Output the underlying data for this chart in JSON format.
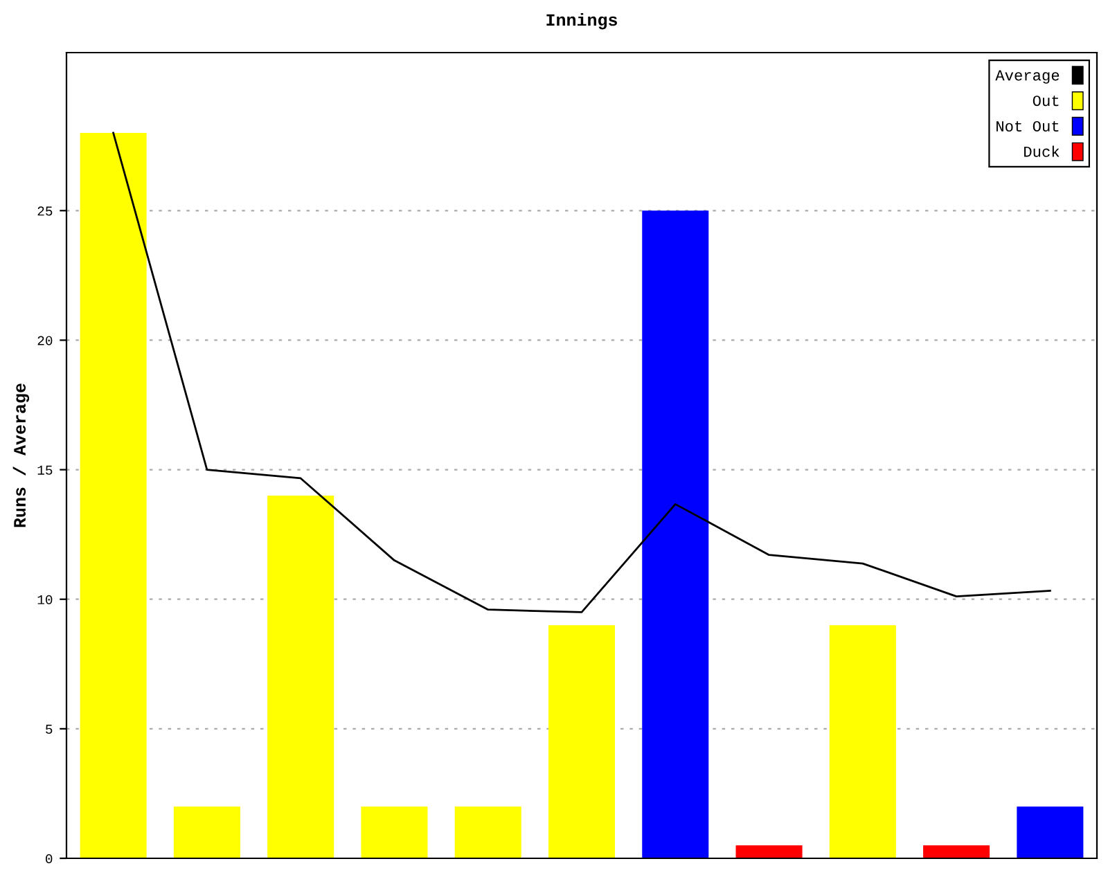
{
  "chart_data": {
    "type": "bar",
    "title": "Innings",
    "ylabel": "Runs / Average",
    "categories": [
      null,
      null,
      null,
      null,
      null,
      null,
      null,
      null,
      null,
      null,
      null
    ],
    "series": [
      {
        "name": "Average",
        "type": "line",
        "color": "#000000",
        "values": [
          28,
          15,
          14.67,
          11.5,
          9.6,
          9.5,
          13.67,
          11.71,
          11.38,
          10.11,
          10.33
        ]
      },
      {
        "name": "Out",
        "color": "#ffff00",
        "values": [
          28,
          2,
          14,
          2,
          2,
          9,
          null,
          null,
          9,
          null,
          null
        ]
      },
      {
        "name": "Not Out",
        "color": "#0000ff",
        "values": [
          null,
          null,
          null,
          null,
          null,
          null,
          25,
          null,
          null,
          null,
          2
        ]
      },
      {
        "name": "Duck",
        "color": "#ff0000",
        "values": [
          null,
          null,
          null,
          null,
          null,
          null,
          null,
          0.5,
          null,
          0.5,
          null
        ]
      }
    ],
    "ylim": [
      0,
      31.1
    ],
    "yticks": [
      0,
      5,
      10,
      15,
      20,
      25
    ],
    "grid": "y",
    "legend": "top right",
    "tick_labels": "y"
  }
}
